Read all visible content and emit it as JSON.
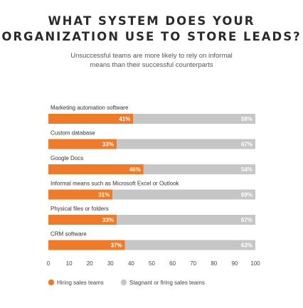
{
  "header": {
    "title_line1": "WHAT SYSTEM DOES YOUR",
    "title_line2": "ORGANIZATION USE TO STORE LEADS?",
    "subtitle_line1": "Unsuccessful teams are more likely to rely on informal",
    "subtitle_line2": "means than their successful counterparts"
  },
  "colors": {
    "hiring": "#ee7b2a",
    "stagnant": "#c6c6c6"
  },
  "chart_data": {
    "type": "bar",
    "orientation": "horizontal-stacked",
    "title": "WHAT SYSTEM DOES YOUR ORGANIZATION USE TO STORE LEADS?",
    "subtitle": "Unsuccessful teams are more likely to rely on informal means than their successful counterparts",
    "categories": [
      "Marketing automation software",
      "Custom database",
      "Google Docs",
      "Informal means such as Microsoft Excel or Outlook",
      "Physical files or folders",
      "CRM software"
    ],
    "series": [
      {
        "name": "Hiring sales teams",
        "color": "#ee7b2a",
        "values": [
          41,
          33,
          46,
          31,
          33,
          37
        ]
      },
      {
        "name": "Stagnant or firing sales teams",
        "color": "#c6c6c6",
        "values": [
          59,
          67,
          54,
          69,
          67,
          63
        ]
      }
    ],
    "value_suffix": "%",
    "xlim": [
      0,
      100
    ],
    "xticks": [
      0,
      10,
      20,
      30,
      40,
      50,
      60,
      70,
      80,
      90,
      100
    ],
    "legend_position": "bottom-left",
    "grid": false
  }
}
